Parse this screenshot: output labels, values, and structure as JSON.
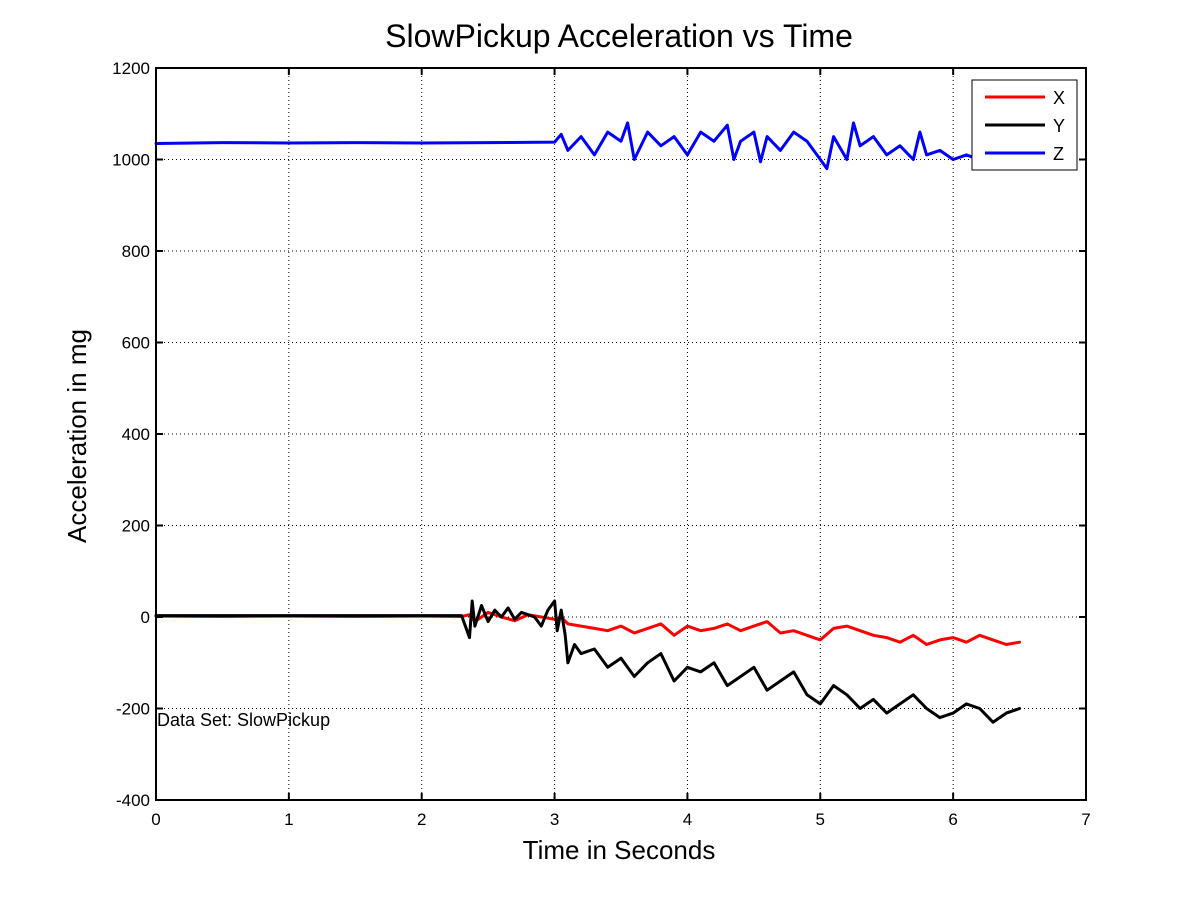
{
  "chart_data": {
    "type": "line",
    "title": "SlowPickup Acceleration vs Time",
    "xlabel": "Time in Seconds",
    "ylabel": "Acceleration in mg",
    "xlim": [
      0,
      7
    ],
    "ylim": [
      -400,
      1200
    ],
    "xticks": [
      0,
      1,
      2,
      3,
      4,
      5,
      6,
      7
    ],
    "yticks": [
      -400,
      -200,
      0,
      200,
      400,
      600,
      800,
      1000,
      1200
    ],
    "grid": true,
    "legend_position": "top-right",
    "annotation": "Data Set: SlowPickup",
    "series": [
      {
        "name": "X",
        "color": "#ff0000",
        "x": [
          0,
          0.5,
          1.0,
          1.5,
          2.0,
          2.3,
          2.36,
          2.4,
          2.5,
          2.6,
          2.7,
          2.8,
          2.9,
          3.0,
          3.05,
          3.1,
          3.2,
          3.3,
          3.4,
          3.5,
          3.6,
          3.7,
          3.8,
          3.9,
          4.0,
          4.1,
          4.2,
          4.3,
          4.4,
          4.5,
          4.6,
          4.7,
          4.8,
          4.9,
          5.0,
          5.1,
          5.2,
          5.3,
          5.4,
          5.5,
          5.6,
          5.7,
          5.8,
          5.9,
          6.0,
          6.1,
          6.2,
          6.3,
          6.4,
          6.5
        ],
        "values": [
          2,
          1,
          2,
          1,
          2,
          1,
          5,
          -10,
          10,
          0,
          -8,
          5,
          0,
          -5,
          0,
          -15,
          -20,
          -25,
          -30,
          -20,
          -35,
          -25,
          -15,
          -40,
          -20,
          -30,
          -25,
          -15,
          -30,
          -20,
          -10,
          -35,
          -30,
          -40,
          -50,
          -25,
          -20,
          -30,
          -40,
          -45,
          -55,
          -40,
          -60,
          -50,
          -45,
          -55,
          -40,
          -50,
          -60,
          -55
        ]
      },
      {
        "name": "Y",
        "color": "#000000",
        "x": [
          0,
          0.5,
          1.0,
          1.5,
          2.0,
          2.3,
          2.36,
          2.38,
          2.4,
          2.45,
          2.5,
          2.55,
          2.6,
          2.65,
          2.7,
          2.75,
          2.8,
          2.85,
          2.9,
          2.95,
          3.0,
          3.02,
          3.05,
          3.08,
          3.1,
          3.15,
          3.2,
          3.3,
          3.4,
          3.5,
          3.6,
          3.7,
          3.8,
          3.9,
          4.0,
          4.1,
          4.2,
          4.3,
          4.4,
          4.5,
          4.6,
          4.7,
          4.8,
          4.9,
          5.0,
          5.1,
          5.2,
          5.3,
          5.4,
          5.5,
          5.6,
          5.7,
          5.8,
          5.9,
          6.0,
          6.1,
          6.2,
          6.3,
          6.4,
          6.5
        ],
        "values": [
          3,
          3,
          3,
          3,
          3,
          3,
          -45,
          35,
          -20,
          25,
          -10,
          15,
          0,
          20,
          -5,
          10,
          5,
          0,
          -20,
          15,
          35,
          -30,
          15,
          -40,
          -100,
          -60,
          -80,
          -70,
          -110,
          -90,
          -130,
          -100,
          -80,
          -140,
          -110,
          -120,
          -100,
          -150,
          -130,
          -110,
          -160,
          -140,
          -120,
          -170,
          -190,
          -150,
          -170,
          -200,
          -180,
          -210,
          -190,
          -170,
          -200,
          -220,
          -210,
          -190,
          -200,
          -230,
          -210,
          -200
        ]
      },
      {
        "name": "Z",
        "color": "#0000ff",
        "x": [
          0,
          0.5,
          1.0,
          1.5,
          2.0,
          2.5,
          3.0,
          3.05,
          3.1,
          3.2,
          3.3,
          3.4,
          3.5,
          3.55,
          3.6,
          3.7,
          3.8,
          3.9,
          4.0,
          4.1,
          4.2,
          4.3,
          4.35,
          4.4,
          4.5,
          4.55,
          4.6,
          4.7,
          4.8,
          4.9,
          5.0,
          5.05,
          5.1,
          5.2,
          5.25,
          5.3,
          5.4,
          5.5,
          5.6,
          5.7,
          5.75,
          5.8,
          5.9,
          6.0,
          6.1,
          6.2,
          6.3,
          6.4,
          6.5
        ],
        "values": [
          1035,
          1037,
          1036,
          1037,
          1036,
          1037,
          1038,
          1055,
          1020,
          1050,
          1010,
          1060,
          1040,
          1080,
          1000,
          1060,
          1030,
          1050,
          1010,
          1060,
          1040,
          1075,
          1000,
          1040,
          1060,
          995,
          1050,
          1020,
          1060,
          1040,
          1000,
          980,
          1050,
          1000,
          1080,
          1030,
          1050,
          1010,
          1030,
          1000,
          1060,
          1010,
          1020,
          1000,
          1010,
          1000,
          1010,
          1000,
          1010
        ]
      }
    ]
  }
}
